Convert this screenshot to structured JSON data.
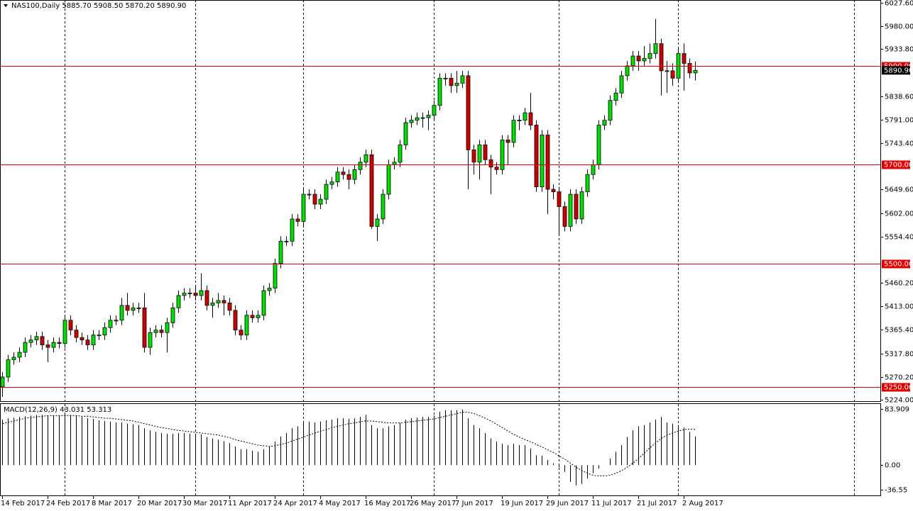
{
  "chart_data": [
    {
      "type": "candlestick",
      "title": "NAS100,Daily  5885.70 5908.50 5870.20 5890.90",
      "up_color": "#00e000",
      "down_color": "#d00000",
      "level_color": "#e00000",
      "categories": [
        "14 Feb 2017",
        null,
        null,
        null,
        null,
        null,
        null,
        null,
        "24 Feb 2017",
        null,
        null,
        null,
        null,
        null,
        null,
        null,
        "8 Mar 2017",
        null,
        null,
        null,
        null,
        null,
        null,
        null,
        "20 Mar 2017",
        null,
        null,
        null,
        null,
        null,
        null,
        null,
        "30 Mar 2017",
        null,
        null,
        null,
        null,
        null,
        null,
        null,
        "11 Apr 2017",
        null,
        null,
        null,
        null,
        null,
        null,
        null,
        "24 Apr 2017",
        null,
        null,
        null,
        null,
        null,
        null,
        null,
        "4 May 2017",
        null,
        null,
        null,
        null,
        null,
        null,
        null,
        "16 May 2017",
        null,
        null,
        null,
        null,
        null,
        null,
        null,
        "26 May 2017",
        null,
        null,
        null,
        null,
        null,
        null,
        null,
        "7 Jun 2017",
        null,
        null,
        null,
        null,
        null,
        null,
        null,
        "19 Jun 2017",
        null,
        null,
        null,
        null,
        null,
        null,
        null,
        "29 Jun 2017",
        null,
        null,
        null,
        null,
        null,
        null,
        null,
        "11 Jul 2017",
        null,
        null,
        null,
        null,
        null,
        null,
        null,
        "21 Jul 2017",
        null,
        null,
        null,
        null,
        null,
        null,
        null,
        "2 Aug 2017",
        null,
        null
      ],
      "open": [
        5250,
        5270,
        5305,
        5310,
        5320,
        5340,
        5345,
        5352,
        5335,
        5330,
        5340,
        5338,
        5385,
        5365,
        5350,
        5345,
        5335,
        5355,
        5355,
        5370,
        5385,
        5385,
        5415,
        5405,
        5410,
        5410,
        5330,
        5360,
        5365,
        5360,
        5380,
        5410,
        5435,
        5440,
        5440,
        5435,
        5445,
        5415,
        5420,
        5425,
        5420,
        5405,
        5365,
        5355,
        5395,
        5390,
        5395,
        5445,
        5450,
        5500,
        5545,
        5545,
        5590,
        5585,
        5640,
        5640,
        5620,
        5630,
        5660,
        5665,
        5685,
        5680,
        5670,
        5690,
        5705,
        5720,
        5575,
        5590,
        5640,
        5700,
        5705,
        5740,
        5785,
        5790,
        5795,
        5795,
        5800,
        5820,
        5875,
        5875,
        5860,
        5865,
        5880,
        5730,
        5705,
        5740,
        5710,
        5695,
        5690,
        5750,
        5745,
        5790,
        5790,
        5805,
        5780,
        5655,
        5760,
        5650,
        5645,
        5615,
        5575,
        5640,
        5590,
        5645,
        5680,
        5700,
        5780,
        5790,
        5830,
        5845,
        5880,
        5900,
        5920,
        5910,
        5915,
        5925,
        5945,
        5890,
        5890,
        5875,
        5925,
        5905,
        5885.7
      ],
      "high": [
        5280,
        5315,
        5320,
        5330,
        5350,
        5355,
        5362,
        5362,
        5345,
        5350,
        5350,
        5395,
        5395,
        5375,
        5360,
        5355,
        5365,
        5365,
        5380,
        5395,
        5395,
        5430,
        5440,
        5420,
        5420,
        5440,
        5370,
        5375,
        5375,
        5390,
        5420,
        5445,
        5450,
        5450,
        5455,
        5480,
        5455,
        5430,
        5440,
        5435,
        5430,
        5415,
        5375,
        5405,
        5405,
        5405,
        5455,
        5460,
        5510,
        5555,
        5555,
        5600,
        5600,
        5650,
        5650,
        5650,
        5640,
        5670,
        5675,
        5695,
        5695,
        5690,
        5700,
        5715,
        5730,
        5730,
        5600,
        5650,
        5710,
        5715,
        5750,
        5795,
        5800,
        5805,
        5805,
        5810,
        5830,
        5885,
        5885,
        5885,
        5890,
        5890,
        5890,
        5740,
        5750,
        5750,
        5720,
        5705,
        5760,
        5760,
        5800,
        5800,
        5815,
        5845,
        5790,
        5770,
        5770,
        5660,
        5655,
        5625,
        5650,
        5650,
        5655,
        5690,
        5710,
        5790,
        5800,
        5840,
        5855,
        5890,
        5910,
        5930,
        5930,
        5940,
        5945,
        5995,
        5955,
        5910,
        5905,
        5935,
        5945,
        5915,
        5908.5
      ],
      "low": [
        5230,
        5260,
        5295,
        5300,
        5310,
        5330,
        5335,
        5325,
        5300,
        5320,
        5328,
        5328,
        5355,
        5340,
        5335,
        5325,
        5325,
        5345,
        5345,
        5360,
        5375,
        5375,
        5395,
        5395,
        5400,
        5320,
        5315,
        5350,
        5350,
        5320,
        5370,
        5400,
        5425,
        5430,
        5425,
        5425,
        5405,
        5390,
        5410,
        5395,
        5395,
        5355,
        5345,
        5345,
        5380,
        5380,
        5385,
        5435,
        5440,
        5490,
        5535,
        5535,
        5575,
        5575,
        5630,
        5610,
        5610,
        5620,
        5650,
        5655,
        5670,
        5650,
        5660,
        5680,
        5695,
        5570,
        5545,
        5580,
        5630,
        5690,
        5695,
        5730,
        5775,
        5780,
        5775,
        5770,
        5790,
        5810,
        5860,
        5845,
        5845,
        5855,
        5650,
        5680,
        5670,
        5700,
        5640,
        5680,
        5680,
        5700,
        5735,
        5770,
        5780,
        5770,
        5645,
        5645,
        5600,
        5630,
        5560,
        5565,
        5565,
        5580,
        5580,
        5635,
        5670,
        5690,
        5770,
        5780,
        5820,
        5835,
        5870,
        5890,
        5890,
        5900,
        5905,
        5915,
        5840,
        5845,
        5860,
        5865,
        5850,
        5875,
        5870.2
      ],
      "close": [
        5270,
        5305,
        5310,
        5320,
        5340,
        5345,
        5352,
        5335,
        5330,
        5340,
        5338,
        5385,
        5365,
        5350,
        5345,
        5335,
        5355,
        5355,
        5370,
        5385,
        5385,
        5415,
        5405,
        5410,
        5410,
        5330,
        5360,
        5365,
        5360,
        5380,
        5410,
        5435,
        5440,
        5440,
        5435,
        5445,
        5415,
        5420,
        5425,
        5420,
        5405,
        5365,
        5355,
        5395,
        5390,
        5395,
        5445,
        5450,
        5500,
        5545,
        5545,
        5590,
        5585,
        5640,
        5640,
        5620,
        5630,
        5660,
        5665,
        5685,
        5680,
        5670,
        5690,
        5705,
        5720,
        5575,
        5590,
        5640,
        5700,
        5705,
        5740,
        5785,
        5790,
        5795,
        5795,
        5800,
        5820,
        5875,
        5875,
        5860,
        5865,
        5880,
        5730,
        5705,
        5740,
        5710,
        5695,
        5690,
        5750,
        5745,
        5790,
        5790,
        5805,
        5780,
        5655,
        5760,
        5650,
        5645,
        5615,
        5575,
        5640,
        5590,
        5645,
        5680,
        5700,
        5780,
        5790,
        5830,
        5845,
        5880,
        5900,
        5920,
        5910,
        5915,
        5925,
        5945,
        5890,
        5890,
        5875,
        5925,
        5905,
        5885.7,
        5890.9
      ],
      "ylim": [
        5224,
        6027.6
      ],
      "yticks": [
        {
          "value": 6027.6,
          "label": "6027.60"
        },
        {
          "value": 5980,
          "label": "5980.00"
        },
        {
          "value": 5933.8,
          "label": "5933.80"
        },
        {
          "value": 5838.6,
          "label": "5838.60"
        },
        {
          "value": 5791,
          "label": "5791.00"
        },
        {
          "value": 5743.4,
          "label": "5743.40"
        },
        {
          "value": 5649.6,
          "label": "5649.60"
        },
        {
          "value": 5602,
          "label": "5602.00"
        },
        {
          "value": 5554.4,
          "label": "5554.40"
        },
        {
          "value": 5460.2,
          "label": "5460.20"
        },
        {
          "value": 5413,
          "label": "5413.00"
        },
        {
          "value": 5365.4,
          "label": "5365.40"
        },
        {
          "value": 5317.8,
          "label": "5317.80"
        },
        {
          "value": 5270.2,
          "label": "5270.20"
        },
        {
          "value": 5224,
          "label": "5224.00"
        }
      ],
      "levels": [
        {
          "value": 5900,
          "label": "5900.00"
        },
        {
          "value": 5700,
          "label": "5700.00"
        },
        {
          "value": 5500,
          "label": "5500.00"
        },
        {
          "value": 5250,
          "label": "5250.00"
        }
      ],
      "last_price": {
        "value": 5890.9,
        "label": "5890.90"
      }
    },
    {
      "type": "macd",
      "title": "MACD(12,26,9) 43.031 53.313",
      "color": "#000000",
      "histogram": [
        68,
        70,
        71,
        72,
        73,
        74,
        75,
        75,
        74,
        74,
        74,
        76,
        75,
        74,
        72,
        70,
        69,
        67,
        66,
        65,
        64,
        64,
        62,
        61,
        60,
        55,
        52,
        50,
        48,
        47,
        47,
        48,
        48,
        47,
        46,
        46,
        42,
        40,
        38,
        36,
        33,
        28,
        24,
        24,
        22,
        20,
        24,
        28,
        35,
        43,
        48,
        55,
        58,
        63,
        65,
        64,
        65,
        67,
        68,
        70,
        70,
        69,
        70,
        72,
        75,
        60,
        55,
        55,
        58,
        60,
        63,
        68,
        70,
        71,
        72,
        72,
        74,
        80,
        82,
        82,
        82,
        83,
        70,
        60,
        55,
        48,
        40,
        35,
        32,
        30,
        32,
        30,
        30,
        25,
        15,
        14,
        8,
        3,
        -3,
        -10,
        -25,
        -30,
        -28,
        -20,
        -12,
        -5,
        0,
        10,
        20,
        30,
        42,
        52,
        58,
        60,
        64,
        68,
        72,
        64,
        62,
        60,
        56,
        50,
        43.031
      ],
      "signal": [
        62,
        64,
        66,
        68,
        70,
        71,
        72,
        73,
        74,
        74,
        74,
        74,
        74,
        74,
        73,
        73,
        72,
        71,
        70,
        70,
        69,
        68,
        67,
        66,
        64,
        62,
        60,
        58,
        56,
        55,
        53,
        52,
        51,
        50,
        49,
        48,
        47,
        46,
        45,
        43,
        41,
        38,
        36,
        34,
        32,
        30,
        29,
        28,
        29,
        31,
        33,
        36,
        39,
        42,
        45,
        48,
        51,
        53,
        56,
        58,
        60,
        62,
        63,
        65,
        66,
        66,
        65,
        64,
        63,
        63,
        63,
        64,
        65,
        66,
        67,
        68,
        69,
        71,
        73,
        75,
        77,
        79,
        79,
        77,
        74,
        70,
        66,
        61,
        56,
        51,
        46,
        42,
        38,
        35,
        31,
        27,
        23,
        19,
        14,
        9,
        3,
        -3,
        -8,
        -12,
        -15,
        -16,
        -16,
        -15,
        -12,
        -8,
        -3,
        3,
        10,
        18,
        26,
        33,
        40,
        45,
        48,
        51,
        53,
        54,
        53.313
      ],
      "ylim": [
        -36.55,
        83.909
      ],
      "yticks": [
        {
          "value": 83.909,
          "label": "83.909"
        },
        {
          "value": 0,
          "label": "0.00"
        },
        {
          "value": -36.55,
          "label": "-36.55"
        }
      ]
    }
  ]
}
